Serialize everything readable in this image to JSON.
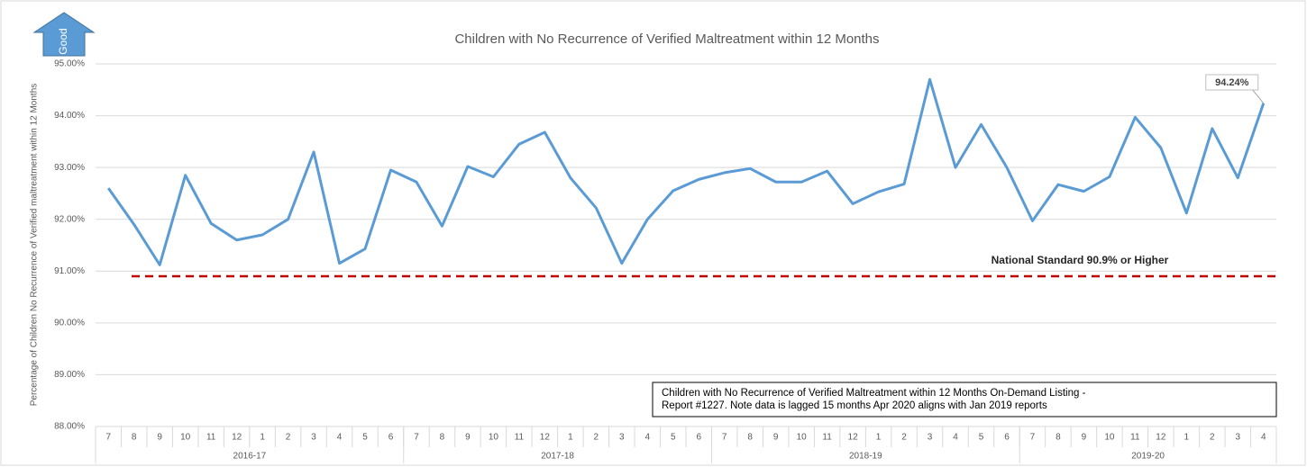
{
  "chart_data": {
    "type": "line",
    "title": "Children with No Recurrence of Verified Maltreatment within 12 Months",
    "ylabel": "Percentage of Children No Recurrence of Verified maltreatment  within 12 Months",
    "badge": "Good",
    "groups": [
      {
        "label": "2016-17",
        "categories": [
          "7",
          "8",
          "9",
          "10",
          "11",
          "12",
          "1",
          "2",
          "3",
          "4",
          "5",
          "6"
        ]
      },
      {
        "label": "2017-18",
        "categories": [
          "7",
          "8",
          "9",
          "10",
          "11",
          "12",
          "1",
          "2",
          "3",
          "4",
          "5",
          "6"
        ]
      },
      {
        "label": "2018-19",
        "categories": [
          "7",
          "8",
          "9",
          "10",
          "11",
          "12",
          "1",
          "2",
          "3",
          "4",
          "5",
          "6"
        ]
      },
      {
        "label": "2019-20",
        "categories": [
          "7",
          "8",
          "9",
          "10",
          "11",
          "12",
          "1",
          "2",
          "3",
          "4"
        ]
      }
    ],
    "series": [
      {
        "name": "No Recurrence",
        "color": "#5b9bd5",
        "values": [
          92.6,
          91.9,
          91.12,
          92.85,
          91.92,
          91.6,
          91.7,
          92.0,
          93.3,
          91.15,
          91.43,
          92.95,
          92.72,
          91.87,
          93.02,
          92.82,
          93.45,
          93.68,
          92.8,
          92.22,
          91.15,
          92.0,
          92.55,
          92.77,
          92.9,
          92.98,
          92.72,
          92.72,
          92.93,
          92.3,
          92.53,
          92.68,
          94.7,
          93.0,
          93.83,
          93.0,
          91.97,
          92.67,
          92.54,
          92.82,
          93.97,
          93.38,
          92.12,
          93.75,
          92.8,
          94.24
        ],
        "value_labels": [
          null,
          null,
          null,
          null,
          null,
          null,
          null,
          null,
          null,
          null,
          null,
          null,
          null,
          null,
          null,
          null,
          null,
          null,
          null,
          null,
          null,
          null,
          null,
          null,
          null,
          null,
          null,
          null,
          null,
          null,
          null,
          null,
          null,
          null,
          null,
          null,
          null,
          null,
          null,
          null,
          null,
          null,
          null,
          null,
          null,
          "94.24%"
        ]
      }
    ],
    "reference_line": {
      "value": 90.9,
      "label": "National Standard 90.9% or Higher",
      "color": "#c00000"
    },
    "note": [
      "Children with No Recurrence of Verified Maltreatment within 12 Months On-Demand Listing -",
      "Report #1227.  Note data is lagged 15 months Apr 2020  aligns with Jan 2019 reports"
    ],
    "ylim": [
      88,
      95
    ],
    "yticks": [
      {
        "value": 88,
        "label": "88.00%"
      },
      {
        "value": 89,
        "label": "89.00%"
      },
      {
        "value": 90,
        "label": "90.00%"
      },
      {
        "value": 91,
        "label": "91.00%"
      },
      {
        "value": 92,
        "label": "92.00%"
      },
      {
        "value": 93,
        "label": "93.00%"
      },
      {
        "value": 94,
        "label": "94.00%"
      },
      {
        "value": 95,
        "label": "95.00%"
      }
    ],
    "grid": true
  }
}
